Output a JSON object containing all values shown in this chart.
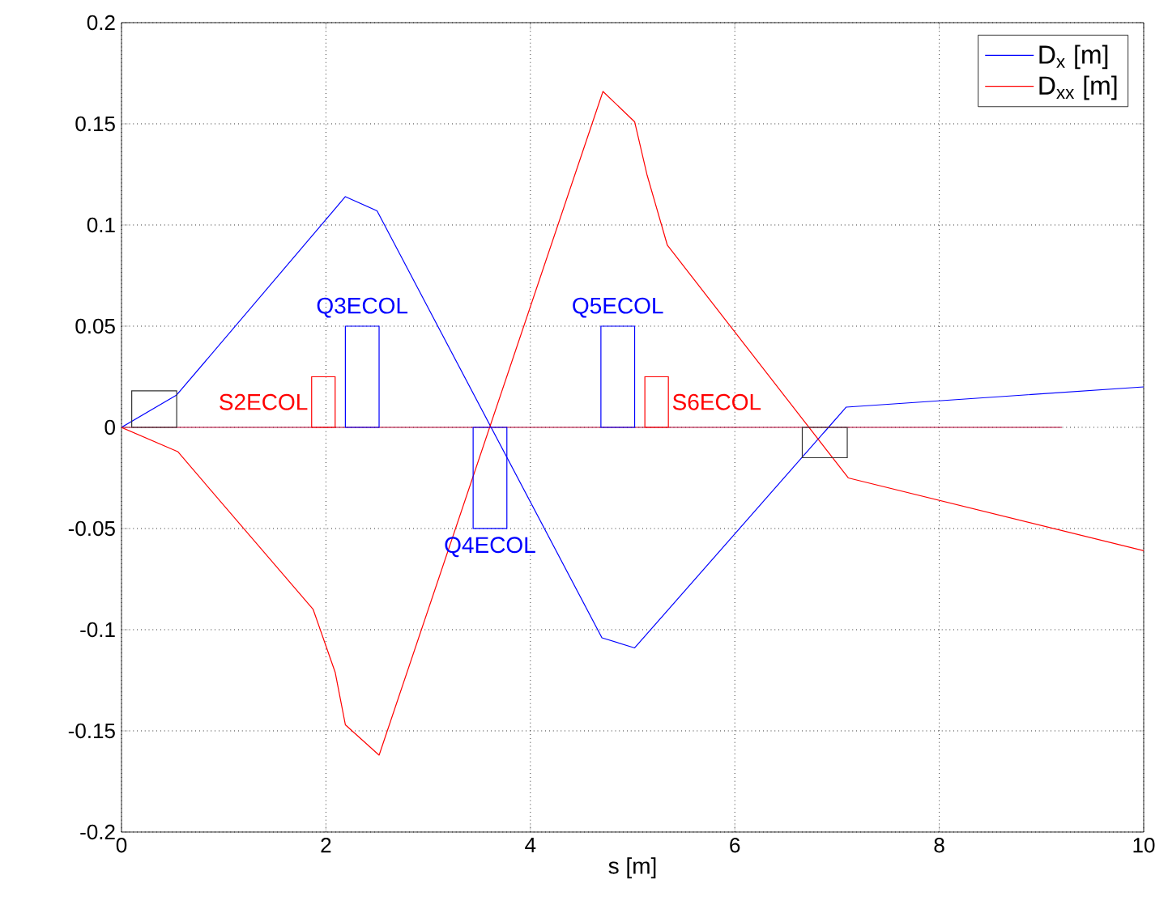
{
  "chart_data": {
    "type": "line",
    "xlabel": "s [m]",
    "xlim": [
      0,
      10
    ],
    "xticks": [
      0,
      2,
      4,
      6,
      8,
      10
    ],
    "ylim": [
      -0.2,
      0.2
    ],
    "yticks": [
      -0.2,
      -0.15,
      -0.1,
      -0.05,
      0,
      0.05,
      0.1,
      0.15,
      0.2
    ],
    "grid": true,
    "legend": "top right",
    "series": [
      {
        "name": "D$_{x}$ [m]",
        "color": "#0000ff",
        "x": [
          0,
          0.54,
          2.19,
          2.5,
          4.7,
          5.02,
          7.09,
          10
        ],
        "values": [
          0,
          0.016,
          0.114,
          0.107,
          -0.104,
          -0.109,
          0.01,
          0.02
        ]
      },
      {
        "name": "D$_{xx}$ [m]",
        "color": "#ff0000",
        "x": [
          0,
          0.55,
          1.875,
          2.09,
          2.19,
          2.52,
          4.71,
          5.02,
          5.14,
          5.34,
          7.11,
          10
        ],
        "values": [
          0,
          -0.012,
          -0.09,
          -0.121,
          -0.147,
          -0.162,
          0.166,
          0.151,
          0.125,
          0.09,
          -0.025,
          -0.061
        ]
      },
      {
        "type": "line",
        "color": "#b00030",
        "x": [
          0,
          9.2
        ],
        "values": [
          0,
          0
        ]
      },
      {
        "type": "bar",
        "color": "#333333",
        "x": [
          0.32
        ],
        "values": [
          0.018
        ]
      },
      {
        "type": "bar",
        "name": "S2ECOL",
        "color": "#ff0000",
        "x": [
          1.975
        ],
        "values": [
          0.025
        ]
      },
      {
        "type": "bar",
        "name": "Q3ECOL",
        "color": "#0000ff",
        "x": [
          2.355
        ],
        "values": [
          0.05
        ]
      },
      {
        "type": "bar",
        "name": "Q4ECOL",
        "color": "#0000ff",
        "x": [
          3.605
        ],
        "values": [
          -0.05
        ]
      },
      {
        "type": "bar",
        "name": "Q5ECOL",
        "color": "#0000ff",
        "x": [
          4.855
        ],
        "values": [
          0.05
        ]
      },
      {
        "type": "bar",
        "name": "S6ECOL",
        "color": "#ff0000",
        "x": [
          5.235
        ],
        "values": [
          0.025
        ]
      },
      {
        "type": "bar",
        "color": "#333333",
        "x": [
          6.88
        ],
        "values": [
          -0.015
        ]
      }
    ]
  }
}
